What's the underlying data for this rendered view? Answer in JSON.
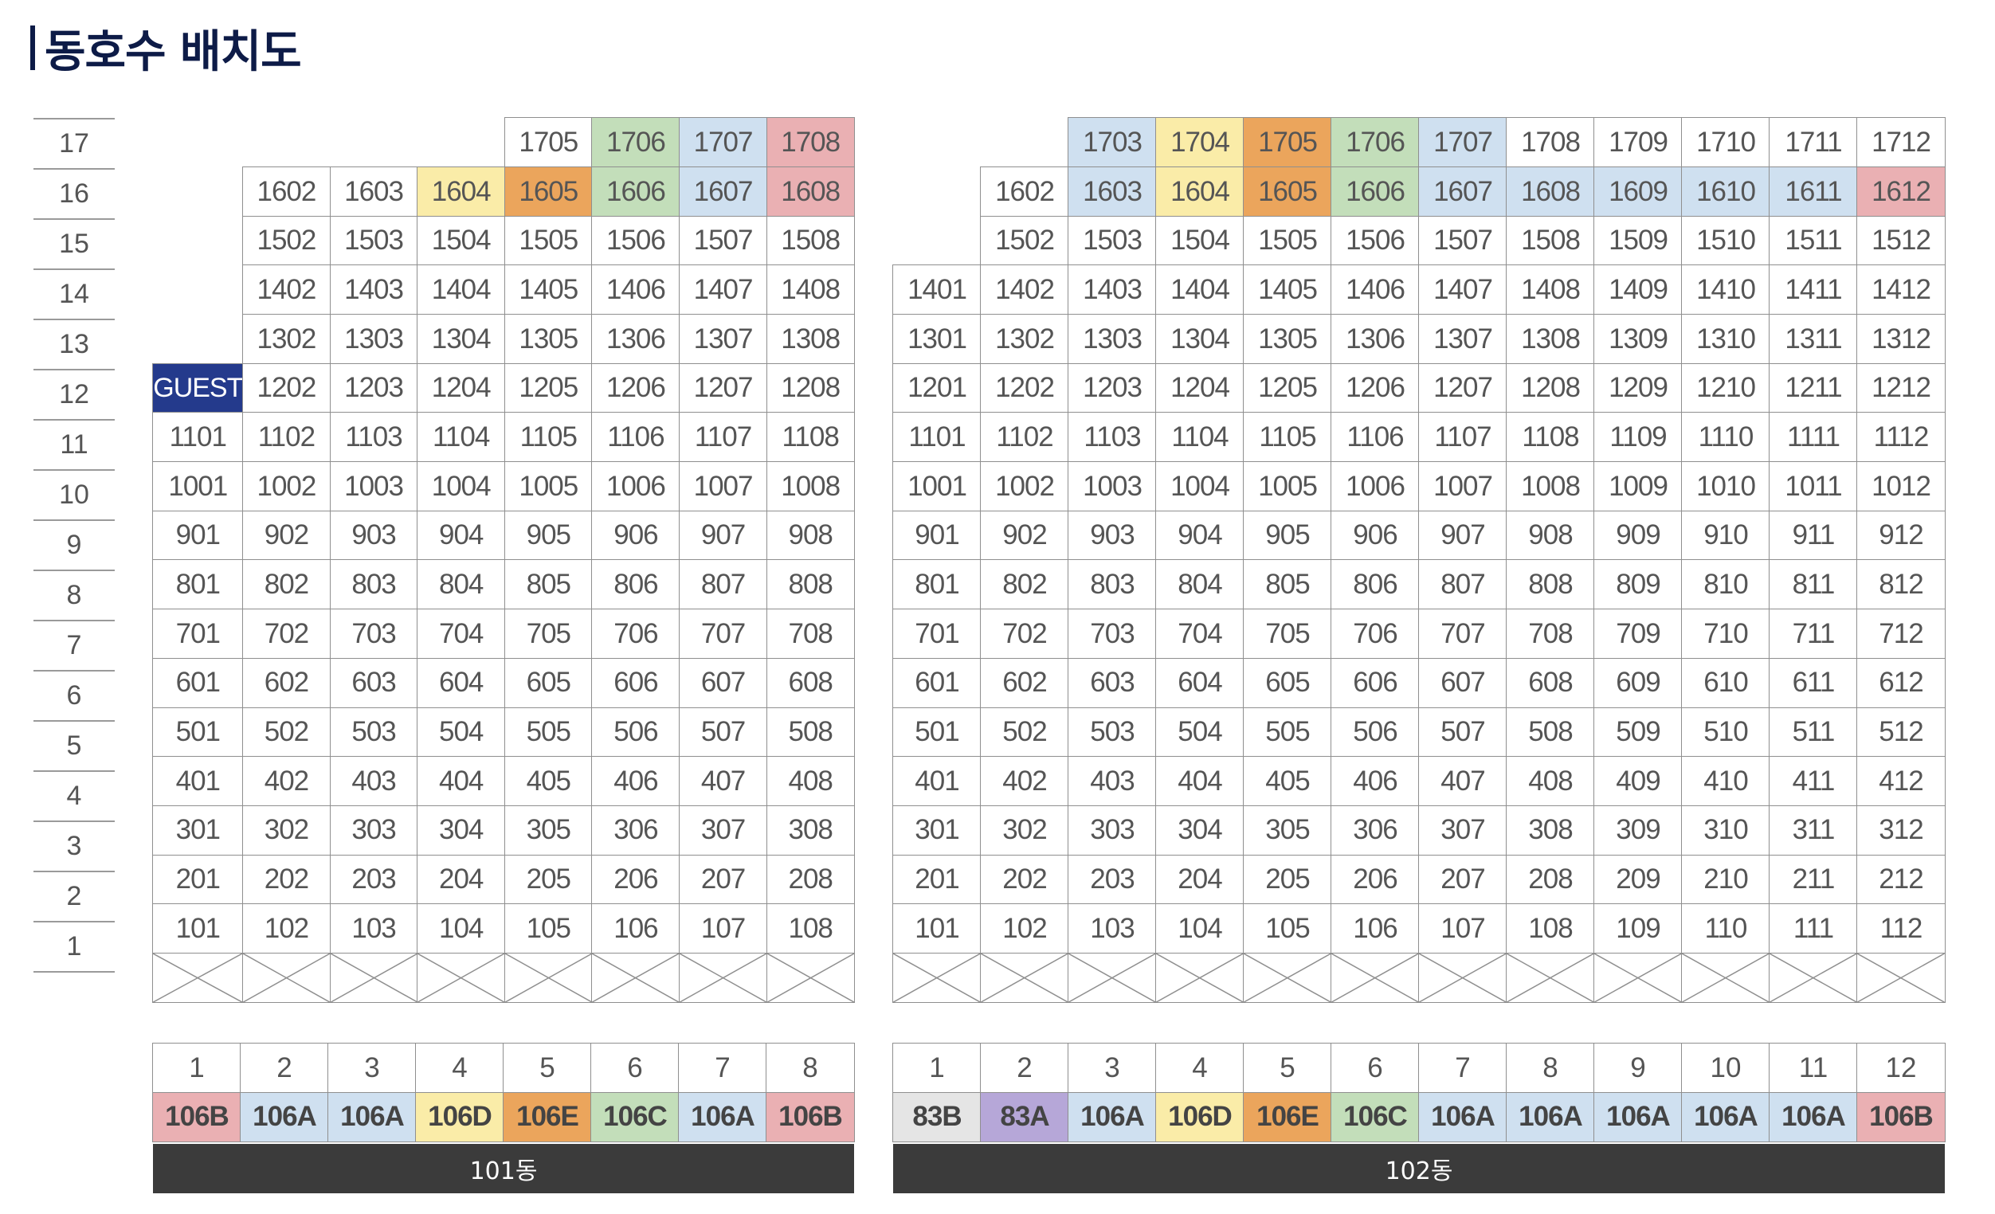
{
  "title": "동호수 배치도",
  "floors": [
    "17",
    "16",
    "15",
    "14",
    "13",
    "12",
    "11",
    "10",
    "9",
    "8",
    "7",
    "6",
    "5",
    "4",
    "3",
    "2",
    "1"
  ],
  "colors": {
    "pink": "#eab0b3",
    "blue": "#cfe0f0",
    "yellow": "#faeca8",
    "orange": "#eba55c",
    "green": "#c3deba",
    "gray": "#e5e5e5",
    "purple": "#b6a7d8",
    "guest": "#243a8c"
  },
  "buildings": [
    {
      "name": "101동",
      "lines": [
        "1",
        "2",
        "3",
        "4",
        "5",
        "6",
        "7",
        "8"
      ],
      "types": [
        "106B",
        "106A",
        "106A",
        "106D",
        "106E",
        "106C",
        "106A",
        "106B"
      ],
      "type_colors": [
        "pink",
        "blue",
        "blue",
        "yellow",
        "orange",
        "green",
        "blue",
        "pink"
      ],
      "rows": [
        [
          null,
          null,
          null,
          null,
          "1705",
          "1706",
          "1707",
          "1708"
        ],
        [
          null,
          "1602",
          "1603",
          "1604",
          "1605",
          "1606",
          "1607",
          "1608"
        ],
        [
          null,
          "1502",
          "1503",
          "1504",
          "1505",
          "1506",
          "1507",
          "1508"
        ],
        [
          null,
          "1402",
          "1403",
          "1404",
          "1405",
          "1406",
          "1407",
          "1408"
        ],
        [
          null,
          "1302",
          "1303",
          "1304",
          "1305",
          "1306",
          "1307",
          "1308"
        ],
        [
          "GUEST",
          "1202",
          "1203",
          "1204",
          "1205",
          "1206",
          "1207",
          "1208"
        ],
        [
          "1101",
          "1102",
          "1103",
          "1104",
          "1105",
          "1106",
          "1107",
          "1108"
        ],
        [
          "1001",
          "1002",
          "1003",
          "1004",
          "1005",
          "1006",
          "1007",
          "1008"
        ],
        [
          "901",
          "902",
          "903",
          "904",
          "905",
          "906",
          "907",
          "908"
        ],
        [
          "801",
          "802",
          "803",
          "804",
          "805",
          "806",
          "807",
          "808"
        ],
        [
          "701",
          "702",
          "703",
          "704",
          "705",
          "706",
          "707",
          "708"
        ],
        [
          "601",
          "602",
          "603",
          "604",
          "605",
          "606",
          "607",
          "608"
        ],
        [
          "501",
          "502",
          "503",
          "504",
          "505",
          "506",
          "507",
          "508"
        ],
        [
          "401",
          "402",
          "403",
          "404",
          "405",
          "406",
          "407",
          "408"
        ],
        [
          "301",
          "302",
          "303",
          "304",
          "305",
          "306",
          "307",
          "308"
        ],
        [
          "201",
          "202",
          "203",
          "204",
          "205",
          "206",
          "207",
          "208"
        ],
        [
          "101",
          "102",
          "103",
          "104",
          "105",
          "106",
          "107",
          "108"
        ]
      ],
      "highlights": {
        "1706": "green",
        "1707": "blue",
        "1708": "pink",
        "1604": "yellow",
        "1605": "orange",
        "1606": "green",
        "1607": "blue",
        "1608": "pink",
        "GUEST": "guest"
      }
    },
    {
      "name": "102동",
      "lines": [
        "1",
        "2",
        "3",
        "4",
        "5",
        "6",
        "7",
        "8",
        "9",
        "10",
        "11",
        "12"
      ],
      "types": [
        "83B",
        "83A",
        "106A",
        "106D",
        "106E",
        "106C",
        "106A",
        "106A",
        "106A",
        "106A",
        "106A",
        "106B"
      ],
      "type_colors": [
        "gray",
        "purple",
        "blue",
        "yellow",
        "orange",
        "green",
        "blue",
        "blue",
        "blue",
        "blue",
        "blue",
        "pink"
      ],
      "rows": [
        [
          null,
          null,
          "1703",
          "1704",
          "1705",
          "1706",
          "1707",
          "1708",
          "1709",
          "1710",
          "1711",
          "1712"
        ],
        [
          null,
          "1602",
          "1603",
          "1604",
          "1605",
          "1606",
          "1607",
          "1608",
          "1609",
          "1610",
          "1611",
          "1612"
        ],
        [
          null,
          "1502",
          "1503",
          "1504",
          "1505",
          "1506",
          "1507",
          "1508",
          "1509",
          "1510",
          "1511",
          "1512"
        ],
        [
          "1401",
          "1402",
          "1403",
          "1404",
          "1405",
          "1406",
          "1407",
          "1408",
          "1409",
          "1410",
          "1411",
          "1412"
        ],
        [
          "1301",
          "1302",
          "1303",
          "1304",
          "1305",
          "1306",
          "1307",
          "1308",
          "1309",
          "1310",
          "1311",
          "1312"
        ],
        [
          "1201",
          "1202",
          "1203",
          "1204",
          "1205",
          "1206",
          "1207",
          "1208",
          "1209",
          "1210",
          "1211",
          "1212"
        ],
        [
          "1101",
          "1102",
          "1103",
          "1104",
          "1105",
          "1106",
          "1107",
          "1108",
          "1109",
          "1110",
          "1111",
          "1112"
        ],
        [
          "1001",
          "1002",
          "1003",
          "1004",
          "1005",
          "1006",
          "1007",
          "1008",
          "1009",
          "1010",
          "1011",
          "1012"
        ],
        [
          "901",
          "902",
          "903",
          "904",
          "905",
          "906",
          "907",
          "908",
          "909",
          "910",
          "911",
          "912"
        ],
        [
          "801",
          "802",
          "803",
          "804",
          "805",
          "806",
          "807",
          "808",
          "809",
          "810",
          "811",
          "812"
        ],
        [
          "701",
          "702",
          "703",
          "704",
          "705",
          "706",
          "707",
          "708",
          "709",
          "710",
          "711",
          "712"
        ],
        [
          "601",
          "602",
          "603",
          "604",
          "605",
          "606",
          "607",
          "608",
          "609",
          "610",
          "611",
          "612"
        ],
        [
          "501",
          "502",
          "503",
          "504",
          "505",
          "506",
          "507",
          "508",
          "509",
          "510",
          "511",
          "512"
        ],
        [
          "401",
          "402",
          "403",
          "404",
          "405",
          "406",
          "407",
          "408",
          "409",
          "410",
          "411",
          "412"
        ],
        [
          "301",
          "302",
          "303",
          "304",
          "305",
          "306",
          "307",
          "308",
          "309",
          "310",
          "311",
          "312"
        ],
        [
          "201",
          "202",
          "203",
          "204",
          "205",
          "206",
          "207",
          "208",
          "209",
          "210",
          "211",
          "212"
        ],
        [
          "101",
          "102",
          "103",
          "104",
          "105",
          "106",
          "107",
          "108",
          "109",
          "110",
          "111",
          "112"
        ]
      ],
      "highlights": {
        "1703": "blue",
        "1704": "yellow",
        "1705": "orange",
        "1706": "green",
        "1707": "blue",
        "1603": "blue",
        "1604": "yellow",
        "1605": "orange",
        "1606": "green",
        "1607": "blue",
        "1608": "blue",
        "1609": "blue",
        "1610": "blue",
        "1611": "blue",
        "1612": "pink"
      }
    }
  ]
}
